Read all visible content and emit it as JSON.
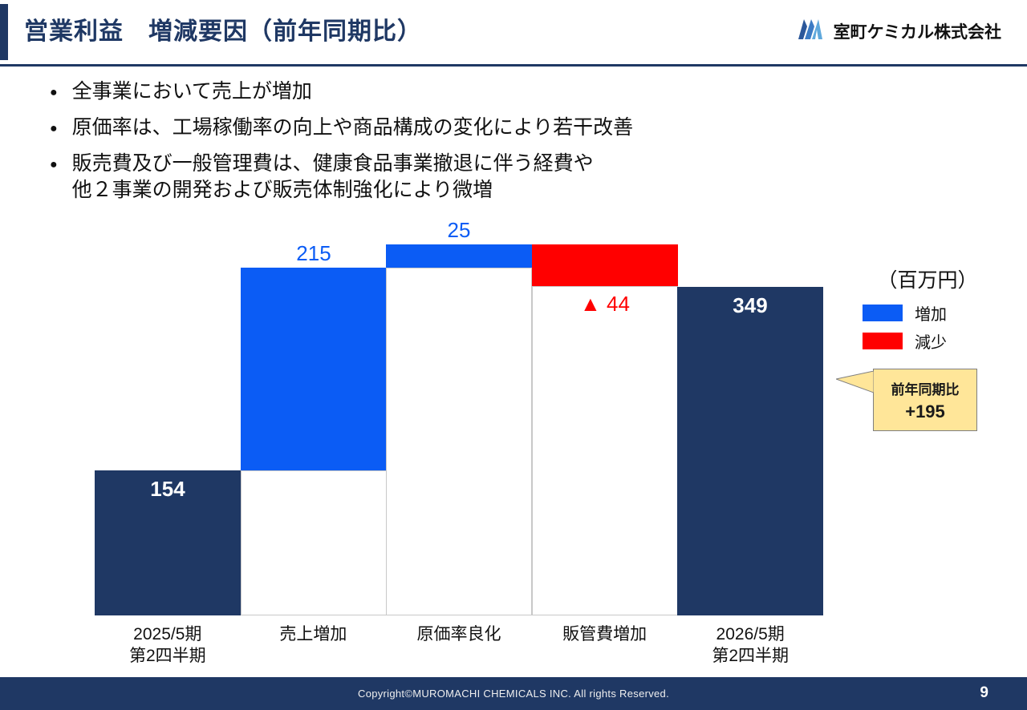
{
  "header": {
    "title": "営業利益　増減要因（前年同期比）",
    "company_name": "室町ケミカル株式会社"
  },
  "bullets": [
    [
      "全事業において売上が増加"
    ],
    [
      "原価率は、工場稼働率の向上や商品構成の変化により若干改善"
    ],
    [
      "販売費及び一般管理費は、健康食品事業撤退に伴う経費や",
      "他２事業の開発および販売体制強化により微増"
    ]
  ],
  "chart_data": {
    "type": "waterfall",
    "unit_label": "（百万円）",
    "ymax": 400,
    "bars": [
      {
        "category": "2025/5期\n第2四半期",
        "kind": "total",
        "value": 154,
        "label": "154"
      },
      {
        "category": "売上増加",
        "kind": "increase",
        "value": 215,
        "label": "215"
      },
      {
        "category": "原価率良化",
        "kind": "increase",
        "value": 25,
        "label": "25"
      },
      {
        "category": "販管費増加",
        "kind": "decrease",
        "value": 44,
        "label": "▲ 44"
      },
      {
        "category": "2026/5期\n第2四半期",
        "kind": "total",
        "value": 349,
        "label": "349"
      }
    ],
    "colors": {
      "total": "#1F3864",
      "increase": "#0B5CF5",
      "decrease": "#FF0000"
    },
    "legend": [
      {
        "label": "増加",
        "color": "#0B5CF5"
      },
      {
        "label": "減少",
        "color": "#FF0000"
      }
    ]
  },
  "callout": {
    "line1": "前年同期比",
    "line2": "+195"
  },
  "footer": {
    "copyright": "Copyright©MUROMACHI CHEMICALS INC. All rights Reserved.",
    "page_number": "9"
  }
}
